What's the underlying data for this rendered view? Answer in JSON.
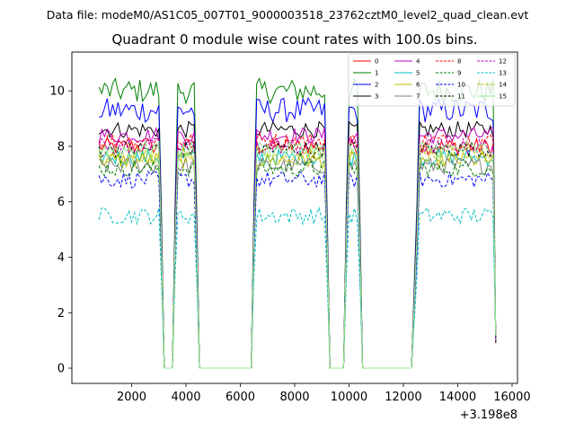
{
  "chart_data": {
    "type": "line",
    "suptitle": "Data file: modeM0/AS1C05_007T01_9000003518_23762cztM0_level2_quad_clean.evt",
    "title": "Quadrant 0 module wise count rates with 100.0s bins.",
    "xlabel": "",
    "ylabel": "",
    "x_offset_label": "+3.198e8",
    "xlim": [
      -200,
      16200
    ],
    "ylim": [
      -0.55,
      11.4
    ],
    "xticks": [
      2000,
      4000,
      6000,
      8000,
      10000,
      12000,
      14000,
      16000
    ],
    "xtick_labels": [
      "2000",
      "4000",
      "6000",
      "8000",
      "10000",
      "12000",
      "14000",
      "16000"
    ],
    "yticks": [
      0,
      2,
      4,
      6,
      8,
      10
    ],
    "ytick_labels": [
      "0",
      "2",
      "4",
      "6",
      "8",
      "10"
    ],
    "legend_location": "upper right",
    "segments": [
      {
        "x_start": 800,
        "x_end": 3000,
        "step": 100
      },
      {
        "x_start": 3700,
        "x_end": 4300,
        "step": 100
      },
      {
        "x_start": 6600,
        "x_end": 9100,
        "step": 100
      },
      {
        "x_start": 10000,
        "x_end": 10300,
        "step": 100
      },
      {
        "x_start": 12600,
        "x_end": 15300,
        "step": 100
      }
    ],
    "zero_gaps": [
      [
        3200,
        3500
      ],
      [
        4500,
        6400
      ],
      [
        9300,
        9800
      ],
      [
        10500,
        12300
      ]
    ],
    "gap_edge_values": {
      "drop_1": 0.0,
      "last_point": 0.9
    },
    "series": [
      {
        "name": "0",
        "color": "#ff0000",
        "dash": "solid",
        "level": 8.0
      },
      {
        "name": "1",
        "color": "#008000",
        "dash": "solid",
        "level": 10.0
      },
      {
        "name": "2",
        "color": "#0000ff",
        "dash": "solid",
        "level": 9.3
      },
      {
        "name": "3",
        "color": "#000000",
        "dash": "solid",
        "level": 8.6
      },
      {
        "name": "4",
        "color": "#bf00bf",
        "dash": "solid",
        "level": 8.4
      },
      {
        "name": "5",
        "color": "#00bfbf",
        "dash": "solid",
        "level": 7.6
      },
      {
        "name": "6",
        "color": "#bfbf00",
        "dash": "solid",
        "level": 7.5
      },
      {
        "name": "7",
        "color": "#808080",
        "dash": "solid",
        "level": 7.3
      },
      {
        "name": "8",
        "color": "#ff0000",
        "dash": "dashed",
        "level": 8.2
      },
      {
        "name": "9",
        "color": "#008000",
        "dash": "dashed",
        "level": 7.2
      },
      {
        "name": "10",
        "color": "#0000ff",
        "dash": "dashed",
        "level": 6.8
      },
      {
        "name": "11",
        "color": "#000000",
        "dash": "dashed",
        "level": 7.9
      },
      {
        "name": "12",
        "color": "#bf00bf",
        "dash": "dashed",
        "level": 8.0
      },
      {
        "name": "13",
        "color": "#00bfbf",
        "dash": "dashed",
        "level": 5.5
      },
      {
        "name": "14",
        "color": "#bfbf00",
        "dash": "dashed",
        "level": 7.7
      },
      {
        "name": "15",
        "color": "#90ee90",
        "dash": "solid",
        "level": 7.9
      }
    ]
  }
}
